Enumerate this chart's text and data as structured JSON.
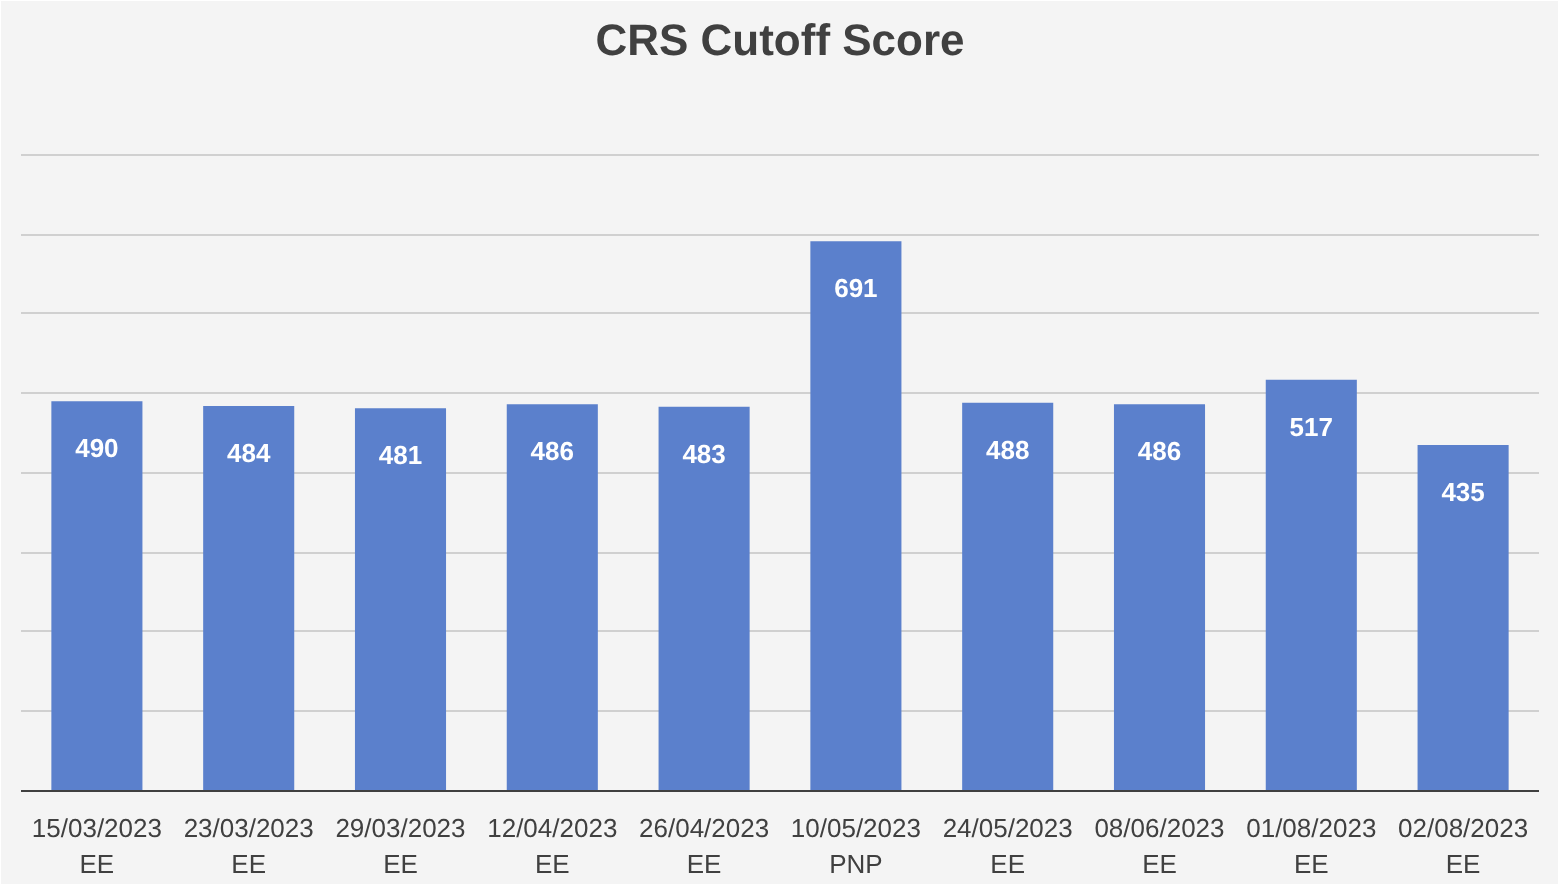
{
  "chart_data": {
    "type": "bar",
    "title": "CRS Cutoff Score",
    "categories": [
      "15/03/2023\nEE",
      "23/03/2023\nEE",
      "29/03/2023\nEE",
      "12/04/2023\nEE",
      "26/04/2023\nEE",
      "10/05/2023\nPNP",
      "24/05/2023\nEE",
      "08/06/2023\nEE",
      "01/08/2023\nEE",
      "02/08/2023\nEE"
    ],
    "values": [
      490,
      484,
      481,
      486,
      483,
      691,
      488,
      486,
      517,
      435
    ],
    "color": "#5b80cc",
    "ylim": [
      0,
      900
    ],
    "yticks": [
      {
        "value": 0,
        "label": null
      },
      {
        "value": 100,
        "label": null
      },
      {
        "value": 200,
        "label": null
      },
      {
        "value": 300,
        "label": null
      },
      {
        "value": 400,
        "label": null
      },
      {
        "value": 500,
        "label": null
      },
      {
        "value": 600,
        "label": null
      },
      {
        "value": 700,
        "label": null
      },
      {
        "value": 800,
        "label": null
      },
      {
        "value": 900,
        "label": null
      }
    ],
    "tick_labels": "x",
    "grid": "y",
    "data_labels": true
  }
}
